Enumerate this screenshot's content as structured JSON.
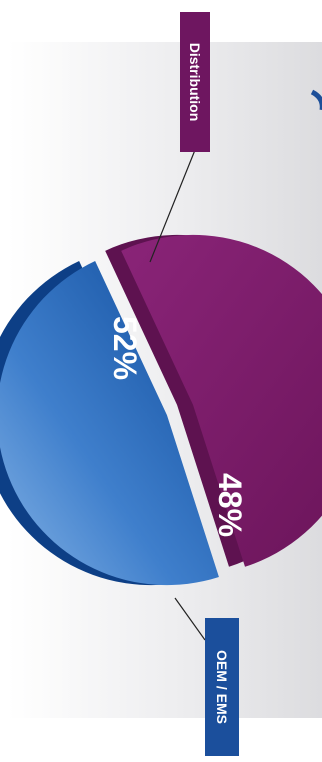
{
  "chart_data": {
    "type": "pie",
    "orientation": "rotated-90-clockwise",
    "exploded": true,
    "slices": [
      {
        "label": "Distribution",
        "value": 52,
        "value_label": "52%",
        "color": "#7b1a68"
      },
      {
        "label": "OEM / EMS",
        "value": 48,
        "value_label": "48%",
        "color": "#1f5fb0"
      }
    ],
    "colors": {
      "distribution_side": "#5e1250",
      "oem_side": "#0d3f86",
      "callout_distribution_bg": "#6e1660",
      "callout_oem_bg": "#1b4f9c",
      "backdrop": "#e2e2e4"
    }
  }
}
